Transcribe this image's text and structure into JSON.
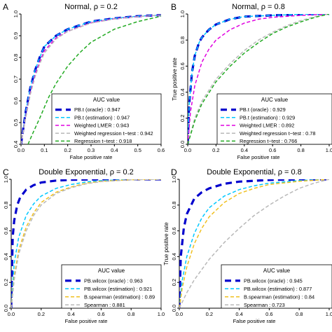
{
  "chart_data": [
    {
      "type": "line",
      "panel_letter": "A",
      "title": "Normal, ρ = 0.2",
      "xlabel": "False positive rate",
      "ylabel": "",
      "xlim": [
        0,
        0.6
      ],
      "ylim": [
        0.4,
        1.0
      ],
      "xticks": [
        "0.0",
        "0.1",
        "0.2",
        "0.3",
        "0.4",
        "0.5",
        "0.6"
      ],
      "yticks": [
        "0.4",
        "0.5",
        "0.6",
        "0.7",
        "0.8",
        "0.9",
        "1.0"
      ],
      "legend_title": "AUC value",
      "legend_position": "bottom-right",
      "series": [
        {
          "name": "PB.t (oracle) : 0.947",
          "color": "#0000cd",
          "dash": "dashed",
          "width": 3.2,
          "x": [
            0,
            0.02,
            0.04,
            0.06,
            0.08,
            0.1,
            0.15,
            0.2,
            0.3,
            0.4,
            0.5,
            0.6
          ],
          "y": [
            0.4,
            0.55,
            0.66,
            0.74,
            0.8,
            0.85,
            0.9,
            0.93,
            0.965,
            0.98,
            0.99,
            0.995
          ]
        },
        {
          "name": "PB.t (estimation) : 0.947",
          "color": "#00c8ff",
          "dash": "dashed",
          "width": 1.5,
          "x": [
            0,
            0.02,
            0.04,
            0.06,
            0.08,
            0.1,
            0.15,
            0.2,
            0.3,
            0.4,
            0.5,
            0.6
          ],
          "y": [
            0.4,
            0.55,
            0.66,
            0.74,
            0.8,
            0.85,
            0.9,
            0.93,
            0.965,
            0.98,
            0.99,
            0.995
          ]
        },
        {
          "name": "Weighted LMER : 0.943",
          "color": "#e000e0",
          "dash": "dashed",
          "width": 1.5,
          "x": [
            0,
            0.02,
            0.04,
            0.06,
            0.08,
            0.1,
            0.15,
            0.2,
            0.3,
            0.4,
            0.5,
            0.6
          ],
          "y": [
            0.4,
            0.53,
            0.64,
            0.72,
            0.78,
            0.83,
            0.89,
            0.92,
            0.96,
            0.978,
            0.988,
            0.995
          ]
        },
        {
          "name": "Weighted regression t−test : 0.942",
          "color": "#b8b8b8",
          "dash": "dashed",
          "width": 1.5,
          "x": [
            0,
            0.02,
            0.04,
            0.06,
            0.08,
            0.1,
            0.15,
            0.2,
            0.3,
            0.4,
            0.5,
            0.6
          ],
          "y": [
            0.4,
            0.52,
            0.63,
            0.71,
            0.77,
            0.82,
            0.885,
            0.92,
            0.958,
            0.977,
            0.988,
            0.995
          ]
        },
        {
          "name": "Regression t−test : 0.918",
          "color": "#22aa22",
          "dash": "dashed",
          "width": 1.5,
          "x": [
            0.03,
            0.05,
            0.08,
            0.1,
            0.12,
            0.15,
            0.2,
            0.25,
            0.3,
            0.4,
            0.5,
            0.6
          ],
          "y": [
            0.4,
            0.45,
            0.52,
            0.57,
            0.62,
            0.68,
            0.76,
            0.82,
            0.87,
            0.93,
            0.965,
            0.99
          ]
        }
      ]
    },
    {
      "type": "line",
      "panel_letter": "B",
      "title": "Normal, ρ = 0.8",
      "xlabel": "False positive rate",
      "ylabel": "True positive rate",
      "xlim": [
        0,
        1.0
      ],
      "ylim": [
        0.0,
        1.0
      ],
      "xticks": [
        "0.0",
        "0.2",
        "0.4",
        "0.6",
        "0.8",
        "1.0"
      ],
      "yticks": [
        "0.0",
        "0.2",
        "0.4",
        "0.6",
        "0.8",
        "1.0"
      ],
      "legend_title": "AUC value",
      "legend_position": "bottom-right",
      "series": [
        {
          "name": "PB.t (oracle) : 0.929",
          "color": "#0000cd",
          "dash": "dashed",
          "width": 3.2,
          "x": [
            0,
            0.01,
            0.03,
            0.05,
            0.08,
            0.1,
            0.15,
            0.2,
            0.3,
            0.4,
            0.6,
            0.8,
            1.0
          ],
          "y": [
            0,
            0.3,
            0.55,
            0.68,
            0.78,
            0.82,
            0.88,
            0.92,
            0.96,
            0.98,
            0.99,
            0.998,
            1.0
          ]
        },
        {
          "name": "PB.t (estimation) : 0.929",
          "color": "#00c8ff",
          "dash": "dashed",
          "width": 1.5,
          "x": [
            0,
            0.01,
            0.03,
            0.05,
            0.08,
            0.1,
            0.15,
            0.2,
            0.3,
            0.4,
            0.6,
            0.8,
            1.0
          ],
          "y": [
            0,
            0.3,
            0.55,
            0.68,
            0.78,
            0.82,
            0.88,
            0.92,
            0.96,
            0.98,
            0.99,
            0.998,
            1.0
          ]
        },
        {
          "name": "Weighted LMER : 0.892",
          "color": "#e000e0",
          "dash": "dashed",
          "width": 1.5,
          "x": [
            0,
            0.02,
            0.05,
            0.1,
            0.15,
            0.2,
            0.3,
            0.4,
            0.5,
            0.6,
            0.8,
            1.0
          ],
          "y": [
            0,
            0.25,
            0.45,
            0.63,
            0.73,
            0.8,
            0.88,
            0.93,
            0.96,
            0.975,
            0.99,
            1.0
          ]
        },
        {
          "name": "Weighted regression t−test : 0.78",
          "color": "#b8b8b8",
          "dash": "dashed",
          "width": 1.5,
          "x": [
            0,
            0.05,
            0.1,
            0.2,
            0.3,
            0.4,
            0.5,
            0.6,
            0.7,
            0.8,
            0.9,
            1.0
          ],
          "y": [
            0,
            0.2,
            0.33,
            0.5,
            0.62,
            0.72,
            0.8,
            0.86,
            0.91,
            0.95,
            0.98,
            1.0
          ]
        },
        {
          "name": "Regression t−test : 0.766",
          "color": "#22aa22",
          "dash": "dashed",
          "width": 1.5,
          "x": [
            0,
            0.05,
            0.1,
            0.2,
            0.3,
            0.4,
            0.5,
            0.6,
            0.7,
            0.8,
            0.9,
            1.0
          ],
          "y": [
            0,
            0.18,
            0.31,
            0.48,
            0.6,
            0.7,
            0.78,
            0.85,
            0.9,
            0.94,
            0.975,
            1.0
          ]
        }
      ]
    },
    {
      "type": "line",
      "panel_letter": "C",
      "title": "Double Exponential, ρ = 0.2",
      "xlabel": "False positive rate",
      "ylabel": "",
      "xlim": [
        0,
        1.0
      ],
      "ylim": [
        0.0,
        1.0
      ],
      "xticks": [
        "0.0",
        "0.2",
        "0.4",
        "0.6",
        "0.8",
        "1.0"
      ],
      "yticks": [
        "0.0",
        "0.2",
        "0.4",
        "0.6",
        "0.8",
        "1.0"
      ],
      "legend_title": "AUC value",
      "legend_position": "bottom-right",
      "series": [
        {
          "name": "PB.wilcox (oracle) : 0.963",
          "color": "#0000cd",
          "dash": "dashed",
          "width": 3.2,
          "x": [
            0,
            0.01,
            0.02,
            0.04,
            0.06,
            0.1,
            0.15,
            0.2,
            0.3,
            0.4,
            0.6,
            1.0
          ],
          "y": [
            0,
            0.55,
            0.68,
            0.8,
            0.86,
            0.92,
            0.955,
            0.975,
            0.99,
            0.996,
            1.0,
            1.0
          ]
        },
        {
          "name": "PB.wilcox (estimation) : 0.921",
          "color": "#00c8ff",
          "dash": "dashed",
          "width": 1.5,
          "x": [
            0,
            0.02,
            0.05,
            0.1,
            0.15,
            0.2,
            0.3,
            0.4,
            0.5,
            0.6,
            0.8,
            1.0
          ],
          "y": [
            0,
            0.35,
            0.55,
            0.72,
            0.81,
            0.87,
            0.93,
            0.96,
            0.98,
            0.99,
            0.998,
            1.0
          ]
        },
        {
          "name": "B.spearman (estimation) : 0.89",
          "color": "#f0c020",
          "dash": "dashed",
          "width": 1.5,
          "x": [
            0,
            0.02,
            0.05,
            0.1,
            0.15,
            0.2,
            0.3,
            0.4,
            0.5,
            0.6,
            0.8,
            1.0
          ],
          "y": [
            0,
            0.25,
            0.45,
            0.63,
            0.74,
            0.82,
            0.9,
            0.94,
            0.97,
            0.985,
            0.997,
            1.0
          ]
        },
        {
          "name": "Spearman : 0.881",
          "color": "#b8b8b8",
          "dash": "dashed",
          "width": 1.5,
          "x": [
            0,
            0.02,
            0.05,
            0.1,
            0.15,
            0.2,
            0.3,
            0.4,
            0.5,
            0.6,
            0.8,
            1.0
          ],
          "y": [
            0,
            0.22,
            0.42,
            0.6,
            0.72,
            0.8,
            0.89,
            0.935,
            0.965,
            0.982,
            0.996,
            1.0
          ]
        }
      ]
    },
    {
      "type": "line",
      "panel_letter": "D",
      "title": "Double Exponential, ρ = 0.8",
      "xlabel": "False positive rate",
      "ylabel": "True positive rate",
      "xlim": [
        0,
        1.0
      ],
      "ylim": [
        0.0,
        1.0
      ],
      "xticks": [
        "0.0",
        "0.2",
        "0.4",
        "0.6",
        "0.8",
        "1.0"
      ],
      "yticks": [
        "0.0",
        "0.2",
        "0.4",
        "0.6",
        "0.8",
        "1.0"
      ],
      "legend_title": "AUC value",
      "legend_position": "bottom-right",
      "series": [
        {
          "name": "PB.wilcox (oracle) : 0.945",
          "color": "#0000cd",
          "dash": "dashed",
          "width": 3.2,
          "x": [
            0,
            0.01,
            0.03,
            0.05,
            0.1,
            0.15,
            0.2,
            0.3,
            0.4,
            0.6,
            0.8,
            1.0
          ],
          "y": [
            0,
            0.4,
            0.62,
            0.73,
            0.85,
            0.9,
            0.93,
            0.965,
            0.982,
            0.995,
            0.999,
            1.0
          ]
        },
        {
          "name": "PB.wilcox (estimation) : 0.877",
          "color": "#00c8ff",
          "dash": "dashed",
          "width": 1.5,
          "x": [
            0,
            0.02,
            0.05,
            0.1,
            0.15,
            0.2,
            0.3,
            0.4,
            0.5,
            0.6,
            0.8,
            1.0
          ],
          "y": [
            0,
            0.22,
            0.4,
            0.58,
            0.7,
            0.78,
            0.87,
            0.92,
            0.95,
            0.97,
            0.99,
            1.0
          ]
        },
        {
          "name": "B.spearman (estimation) : 0.84",
          "color": "#f0c020",
          "dash": "dashed",
          "width": 1.5,
          "x": [
            0,
            0.02,
            0.05,
            0.1,
            0.15,
            0.2,
            0.3,
            0.4,
            0.5,
            0.6,
            0.8,
            1.0
          ],
          "y": [
            0,
            0.16,
            0.32,
            0.5,
            0.62,
            0.71,
            0.82,
            0.89,
            0.93,
            0.96,
            0.985,
            1.0
          ]
        },
        {
          "name": "Spearman : 0.723",
          "color": "#b8b8b8",
          "dash": "dashed",
          "width": 1.5,
          "x": [
            0,
            0.05,
            0.1,
            0.2,
            0.3,
            0.4,
            0.5,
            0.6,
            0.7,
            0.8,
            0.9,
            1.0
          ],
          "y": [
            0,
            0.12,
            0.22,
            0.38,
            0.51,
            0.62,
            0.72,
            0.8,
            0.87,
            0.93,
            0.97,
            1.0
          ]
        }
      ]
    }
  ]
}
